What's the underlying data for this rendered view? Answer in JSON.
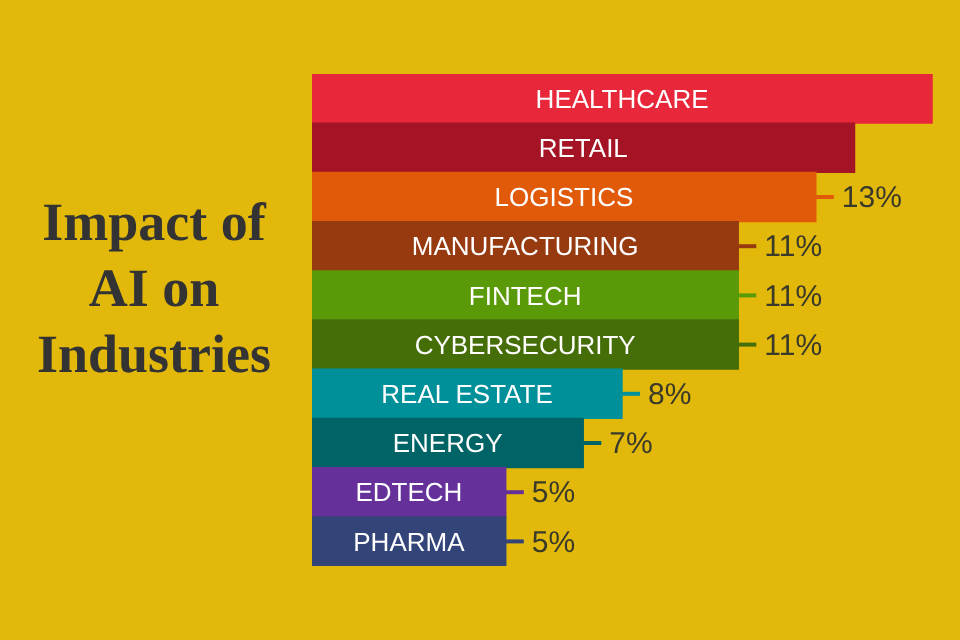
{
  "chart_data": {
    "type": "bar",
    "orientation": "horizontal",
    "title": "Impact of AI on Industries",
    "categories": [
      "HEALTHCARE",
      "RETAIL",
      "LOGISTICS",
      "MANUFACTURING",
      "FINTECH",
      "CYBERSECURITY",
      "REAL ESTATE",
      "ENERGY",
      "EDTECH",
      "PHARMA"
    ],
    "values": [
      16,
      14,
      13,
      11,
      11,
      11,
      8,
      7,
      5,
      5
    ],
    "value_labels": [
      null,
      null,
      "13%",
      "11%",
      "11%",
      "11%",
      "8%",
      "7%",
      "5%",
      "5%"
    ],
    "colors": [
      "#e8283a",
      "#a51424",
      "#e05a0a",
      "#973a10",
      "#5a9a08",
      "#456e08",
      "#00909a",
      "#006466",
      "#66309a",
      "#334478"
    ],
    "legend": false
  }
}
